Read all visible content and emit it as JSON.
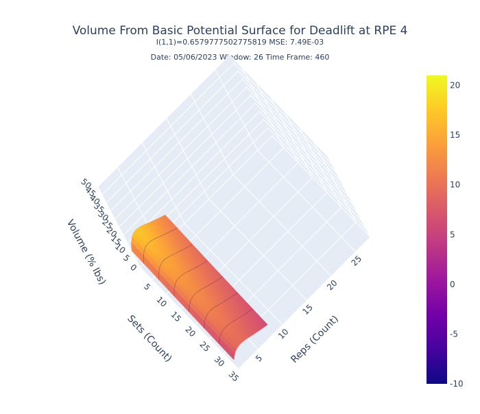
{
  "chart_data": {
    "type": "surface",
    "title": "Volume From Basic Potential Surface for Deadlift at RPE 4",
    "subtitle_line1": "I(1,1)=0.6579777502775819  MSE: 7.49E-03",
    "subtitle_line2": "Date: 05/06/2023  Window: 26  Time Frame: 460",
    "axes": {
      "x": {
        "label": "Sets (Count)",
        "range": [
          1,
          35
        ],
        "ticks": [
          5,
          10,
          15,
          20,
          25,
          30,
          35
        ]
      },
      "y": {
        "label": "Reps (Count)",
        "range": [
          1,
          28
        ],
        "ticks": [
          5,
          10,
          15,
          20,
          25
        ]
      },
      "z": {
        "label": "Volume (% lbs)",
        "range": [
          0,
          50
        ],
        "ticks": [
          0,
          5,
          10,
          15,
          20,
          25,
          30,
          35,
          40,
          45,
          50
        ]
      }
    },
    "colorbar": {
      "range": [
        -10,
        21
      ],
      "ticks": [
        -10,
        -5,
        0,
        5,
        10,
        15,
        20
      ],
      "colorscale": [
        "#0d0887",
        "#46039f",
        "#7201a8",
        "#9c179e",
        "#bd3786",
        "#d8576b",
        "#ed7953",
        "#fb9f3a",
        "#fdca26",
        "#f0f921"
      ]
    },
    "surface_description_values": {
      "sets_range_shown": [
        1,
        35
      ],
      "reps_range_shown": [
        1,
        8
      ],
      "volume_min": 0,
      "volume_max": 21
    },
    "colors": {
      "scene_background": "#e5ecf6",
      "grid": "#ffffff",
      "text": "#2a3f5f"
    }
  }
}
